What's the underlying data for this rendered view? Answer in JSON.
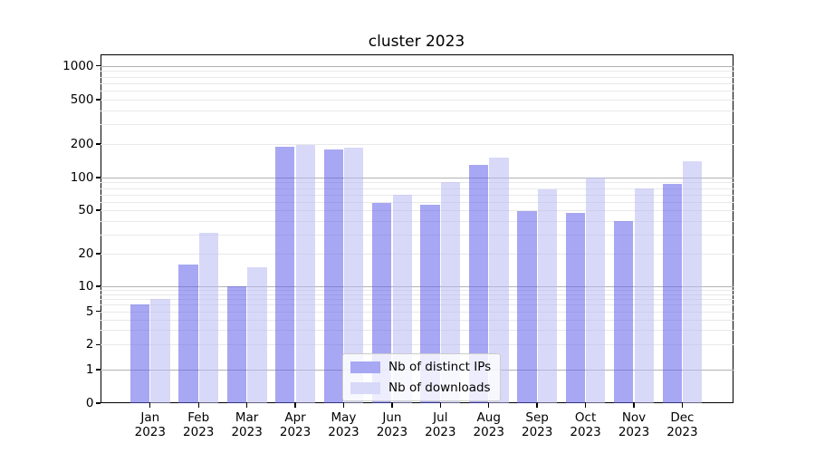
{
  "title": "cluster 2023",
  "legend": {
    "items": [
      {
        "label": "Nb of distinct IPs",
        "color": "#a7a7f4"
      },
      {
        "label": "Nb of downloads",
        "color": "#d8d8f8"
      }
    ]
  },
  "colors": {
    "bar_ips_fill": "rgba(95,95,233,0.55)",
    "bar_downloads_fill": "rgba(184,184,242,0.55)",
    "major_grid": "#b2b2b2",
    "minor_grid": "#e9e9e9",
    "axis": "#000000"
  },
  "chart_data": {
    "type": "bar",
    "title": "cluster 2023",
    "categories": [
      "Jan 2023",
      "Feb 2023",
      "Mar 2023",
      "Apr 2023",
      "May 2023",
      "Jun 2023",
      "Jul 2023",
      "Aug 2023",
      "Sep 2023",
      "Oct 2023",
      "Nov 2023",
      "Dec 2023"
    ],
    "series": [
      {
        "name": "Nb of distinct IPs",
        "values": [
          6,
          16,
          10,
          190,
          178,
          58,
          56,
          130,
          49,
          47,
          40,
          87
        ]
      },
      {
        "name": "Nb of downloads",
        "values": [
          7,
          31,
          15,
          195,
          186,
          70,
          91,
          150,
          78,
          100,
          79,
          140
        ]
      }
    ],
    "xlabel": "",
    "ylabel": "",
    "yscale": "symlog",
    "yticks": [
      0,
      1,
      2,
      5,
      10,
      20,
      50,
      100,
      200,
      500,
      1000
    ],
    "ylim": [
      0,
      1270
    ],
    "grid": true,
    "legend_position": "lower-center"
  }
}
